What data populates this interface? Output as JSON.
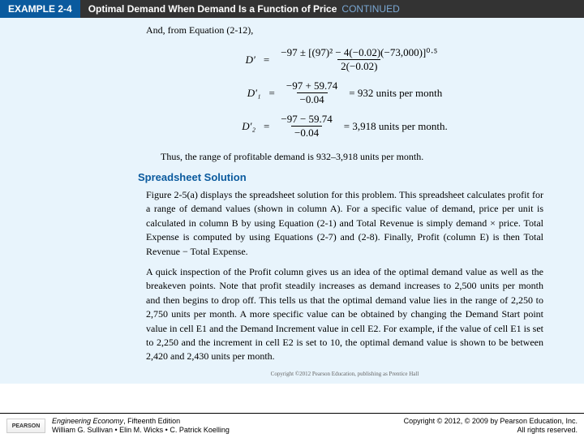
{
  "header": {
    "example_label": "EXAMPLE 2-4",
    "title": "Optimal Demand When Demand Is a Function of Price",
    "continued": "CONTINUED"
  },
  "intro": "And, from Equation (2-12),",
  "eq1": {
    "lhs": "D′",
    "num": "−97 ± [(97)² − 4(−0.02)(−73,000)]⁰·⁵",
    "den": "2(−0.02)"
  },
  "eq2": {
    "lhs": "D′₁",
    "num": "−97 + 59.74",
    "den": "−0.04",
    "result": "= 932 units per month"
  },
  "eq3": {
    "lhs": "D′₂",
    "num": "−97 − 59.74",
    "den": "−0.04",
    "result": "= 3,918 units per month."
  },
  "conclusion": "Thus, the range of profitable demand is 932–3,918 units per month.",
  "section_heading": "Spreadsheet Solution",
  "para1": "Figure 2-5(a) displays the spreadsheet solution for this problem. This spreadsheet calculates profit for a range of demand values (shown in column A). For a specific value of demand, price per unit is calculated in column B by using Equation (2-1) and Total Revenue is simply demand × price. Total Expense is computed by using Equations (2-7) and (2-8). Finally, Profit (column E) is then Total Revenue − Total Expense.",
  "para2": "A quick inspection of the Profit column gives us an idea of the optimal demand value as well as the breakeven points. Note that profit steadily increases as demand increases to 2,500 units per month and then begins to drop off. This tells us that the optimal demand value lies in the range of 2,250 to 2,750 units per month. A more specific value can be obtained by changing the Demand Start point value in cell E1 and the Demand Increment value in cell E2. For example, if the value of cell E1 is set to 2,250 and the increment in cell E2 is set to 10, the optimal demand value is shown to be between 2,420 and 2,430 units per month.",
  "small_copy": "Copyright ©2012 Pearson Education, publishing as Prentice Hall",
  "footer": {
    "logo": "PEARSON",
    "book": "Engineering Economy",
    "edition": ", Fifteenth Edition",
    "authors": "William G. Sullivan • Elin M. Wicks • C. Patrick Koelling",
    "copyright": "Copyright © 2012, © 2009 by Pearson Education, Inc.",
    "rights": "All rights reserved."
  }
}
